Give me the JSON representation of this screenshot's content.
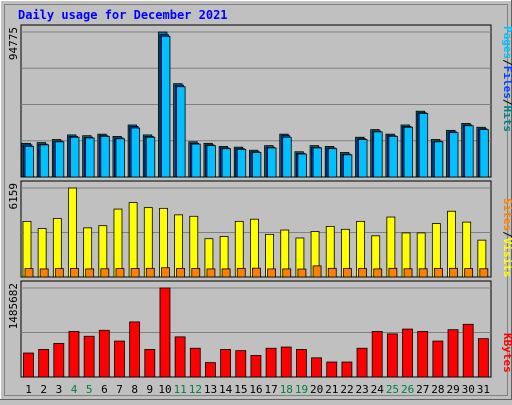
{
  "title": "Daily usage for December 2021",
  "colors": {
    "background": "#c0c0c0",
    "title": "#0000ff",
    "pages": "#00c0ff",
    "hits": "#008080",
    "files": "#0040ff",
    "visits": "#ffff00",
    "sites": "#ff8000",
    "kbytes": "#ff0000",
    "weekend_label": "#008040",
    "weekday_label": "#000000"
  },
  "legend": {
    "top": [
      {
        "text": "Pages",
        "color": "#00c0ff"
      },
      {
        "text": "/",
        "color": "#000000"
      },
      {
        "text": "Files",
        "color": "#0040ff"
      },
      {
        "text": "/",
        "color": "#000000"
      },
      {
        "text": "Hits",
        "color": "#008080"
      }
    ],
    "middle": [
      {
        "text": "Sites",
        "color": "#ff8000"
      },
      {
        "text": "/",
        "color": "#000000"
      },
      {
        "text": "Visits",
        "color": "#ffff00"
      }
    ],
    "bottom": [
      {
        "text": "KBytes",
        "color": "#ff0000"
      }
    ]
  },
  "chart_data": [
    {
      "type": "bar",
      "panel": "hits-files-pages",
      "ymax_label": "94775",
      "ylim": [
        0,
        94775
      ],
      "categories": [
        "1",
        "2",
        "3",
        "4",
        "5",
        "6",
        "7",
        "8",
        "9",
        "10",
        "11",
        "12",
        "13",
        "14",
        "15",
        "16",
        "17",
        "18",
        "19",
        "20",
        "21",
        "22",
        "23",
        "24",
        "25",
        "26",
        "27",
        "28",
        "29",
        "30",
        "31"
      ],
      "weekend_days": [
        "4",
        "5",
        "11",
        "12",
        "18",
        "19",
        "25",
        "26"
      ],
      "series": [
        {
          "name": "Hits",
          "color": "#008080",
          "values": [
            22000,
            22500,
            24500,
            27500,
            27000,
            28000,
            26500,
            34000,
            27500,
            94775,
            61000,
            23000,
            22000,
            20000,
            19500,
            17500,
            20500,
            28000,
            16500,
            20500,
            20000,
            16000,
            26000,
            31000,
            28000,
            34000,
            43000,
            24500,
            30500,
            35000,
            32500
          ]
        },
        {
          "name": "Files",
          "color": "#0040ff",
          "values": [
            21000,
            21500,
            23500,
            26500,
            26000,
            27000,
            25500,
            33000,
            26500,
            93000,
            60000,
            22000,
            21000,
            19000,
            18500,
            16500,
            19500,
            27000,
            15500,
            19500,
            19000,
            15000,
            25000,
            30000,
            27000,
            33000,
            42000,
            23500,
            29500,
            34000,
            31500
          ]
        },
        {
          "name": "Pages",
          "color": "#00c0ff",
          "values": [
            20000,
            21000,
            23000,
            26000,
            25500,
            26500,
            25000,
            32000,
            26000,
            92000,
            59000,
            21500,
            20500,
            18500,
            18000,
            16000,
            19000,
            26000,
            15000,
            19000,
            18500,
            14500,
            24500,
            29500,
            26500,
            32500,
            41500,
            23000,
            29000,
            33500,
            31000
          ]
        }
      ]
    },
    {
      "type": "bar",
      "panel": "visits-sites",
      "ymax_label": "6159",
      "ylim": [
        0,
        6159
      ],
      "categories": [
        "1",
        "2",
        "3",
        "4",
        "5",
        "6",
        "7",
        "8",
        "9",
        "10",
        "11",
        "12",
        "13",
        "14",
        "15",
        "16",
        "17",
        "18",
        "19",
        "20",
        "21",
        "22",
        "23",
        "24",
        "25",
        "26",
        "27",
        "28",
        "29",
        "30",
        "31"
      ],
      "series": [
        {
          "name": "Visits",
          "color": "#ffff00",
          "values": [
            3850,
            3350,
            4050,
            6159,
            3400,
            3550,
            4700,
            5150,
            4800,
            4750,
            4300,
            4200,
            2650,
            2800,
            3850,
            4000,
            2950,
            3250,
            2700,
            3150,
            3500,
            3300,
            3850,
            2850,
            4150,
            3050,
            3050,
            3700,
            4550,
            3800,
            2550
          ]
        },
        {
          "name": "Sites",
          "color": "#ff8000",
          "values": [
            580,
            560,
            580,
            590,
            560,
            570,
            580,
            590,
            600,
            640,
            590,
            590,
            560,
            560,
            590,
            610,
            560,
            560,
            550,
            770,
            600,
            580,
            580,
            560,
            600,
            570,
            570,
            590,
            600,
            580,
            570
          ]
        }
      ]
    },
    {
      "type": "bar",
      "panel": "kbytes",
      "ymax_label": "1485682",
      "ylim": [
        0,
        1485682
      ],
      "categories": [
        "1",
        "2",
        "3",
        "4",
        "5",
        "6",
        "7",
        "8",
        "9",
        "10",
        "11",
        "12",
        "13",
        "14",
        "15",
        "16",
        "17",
        "18",
        "19",
        "20",
        "21",
        "22",
        "23",
        "24",
        "25",
        "26",
        "27",
        "28",
        "29",
        "30",
        "31"
      ],
      "series": [
        {
          "name": "KBytes",
          "color": "#ff0000",
          "values": [
            400000,
            460000,
            560000,
            760000,
            680000,
            780000,
            600000,
            920000,
            460000,
            1485682,
            670000,
            480000,
            240000,
            460000,
            440000,
            360000,
            480000,
            500000,
            460000,
            320000,
            250000,
            250000,
            480000,
            760000,
            720000,
            800000,
            760000,
            600000,
            790000,
            880000,
            640000
          ]
        }
      ]
    }
  ]
}
